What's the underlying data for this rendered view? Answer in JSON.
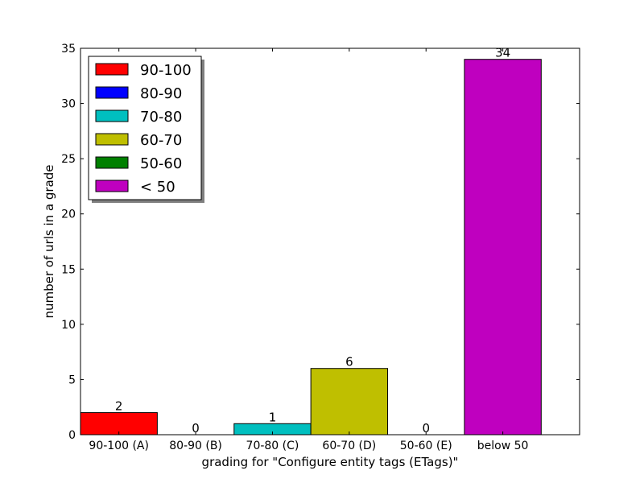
{
  "chart_data": {
    "type": "bar",
    "title": "",
    "xlabel": "grading for \"Configure entity tags (ETags)\"",
    "ylabel": "number of urls in a grade",
    "ylim": [
      0,
      35
    ],
    "yticks": [
      0,
      5,
      10,
      15,
      20,
      25,
      30,
      35
    ],
    "categories": [
      "90-100 (A)",
      "80-90 (B)",
      "70-80 (C)",
      "60-70 (D)",
      "50-60 (E)",
      "below 50"
    ],
    "values": [
      2,
      0,
      1,
      6,
      0,
      34
    ],
    "colors": [
      "#ff0000",
      "#0000ff",
      "#00bfbf",
      "#bfbf00",
      "#008000",
      "#bf00bf"
    ],
    "legend": {
      "placement": "top-left",
      "entries": [
        "90-100",
        "80-90",
        "70-80",
        "60-70",
        "50-60",
        "< 50"
      ]
    },
    "grid": false
  }
}
